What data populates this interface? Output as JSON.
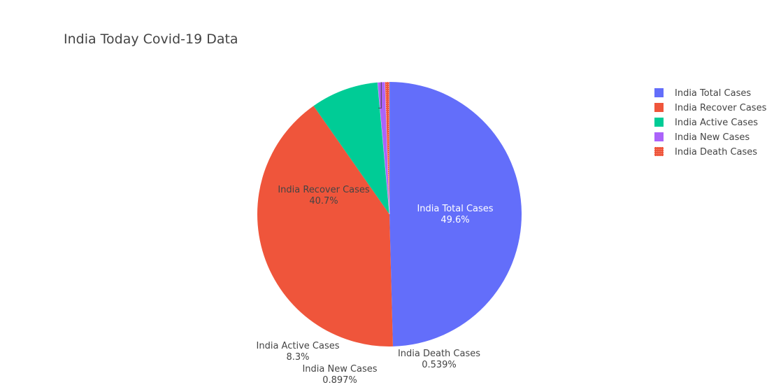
{
  "chart_data": {
    "type": "pie",
    "title": "India Today Covid-19 Data",
    "labels": [
      "India Total Cases",
      "India Recover Cases",
      "India Active Cases",
      "India New Cases",
      "India Death Cases"
    ],
    "percent_labels": [
      "49.6%",
      "40.7%",
      "8.3%",
      "0.897%",
      "0.539%"
    ],
    "values": [
      49.6,
      40.7,
      8.3,
      0.897,
      0.539
    ],
    "colors": [
      "#636efa",
      "#ef553b",
      "#00cc96",
      "#ab63fa",
      "#ef553b"
    ],
    "direction": "clockwise",
    "start_angle": "12 o'clock",
    "legend_position": "top-right",
    "legend": [
      "India Total Cases",
      "India Recover Cases",
      "India Active Cases",
      "India New Cases",
      "India Death Cases"
    ]
  }
}
